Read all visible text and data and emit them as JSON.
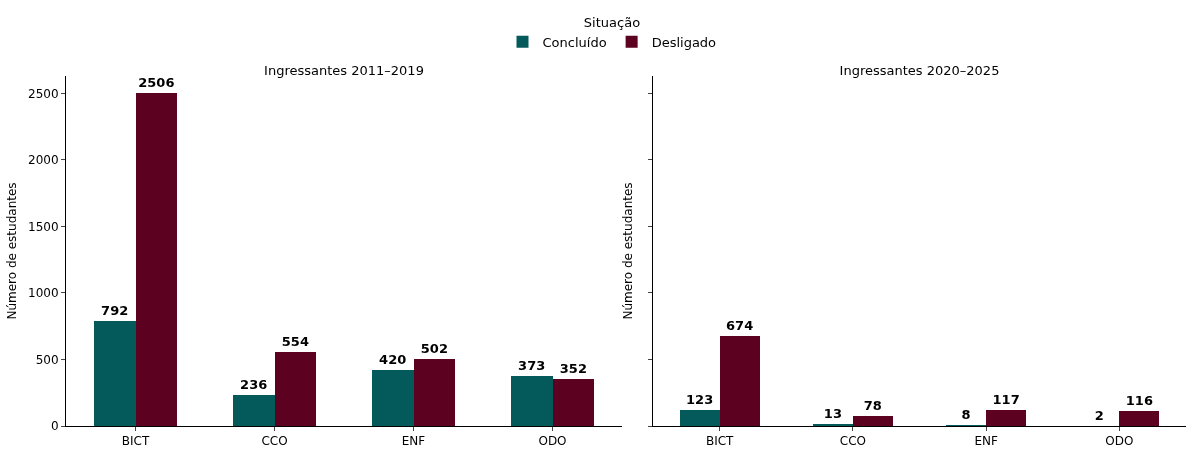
{
  "chart_data": [
    {
      "type": "bar",
      "title": "Ingressantes 2011–2019",
      "ylabel": "Número de estudantes",
      "legend_title": "Situação",
      "legend": "top",
      "categories": [
        "BICT",
        "CCO",
        "ENF",
        "ODO"
      ],
      "series": [
        {
          "name": "Concluído",
          "color": "#045a5a",
          "values": [
            792,
            236,
            420,
            373
          ]
        },
        {
          "name": "Desligado",
          "color": "#5c0120",
          "values": [
            2506,
            554,
            502,
            352
          ]
        }
      ],
      "ylim": [
        0,
        2630
      ],
      "yticks": [
        0,
        500,
        1000,
        1500,
        2000,
        2500
      ],
      "data_labels": true,
      "grid": false
    },
    {
      "type": "bar",
      "title": "Ingressantes 2020–2025",
      "ylabel": "Número de estudantes",
      "legend": false,
      "categories": [
        "BICT",
        "CCO",
        "ENF",
        "ODO"
      ],
      "series": [
        {
          "color": "#045a5a",
          "values": [
            123,
            13,
            8,
            2
          ]
        },
        {
          "color": "#5c0120",
          "values": [
            674,
            78,
            117,
            116
          ]
        }
      ],
      "ylim": [
        0,
        2630
      ],
      "yticks": [
        {
          "value": 0,
          "label": null
        },
        {
          "value": 500,
          "label": null
        },
        {
          "value": 1000,
          "label": null
        },
        {
          "value": 1500,
          "label": null
        },
        {
          "value": 2000,
          "label": null
        },
        {
          "value": 2500,
          "label": null
        }
      ],
      "tick_labels": "x",
      "data_labels": true,
      "grid": false
    }
  ]
}
